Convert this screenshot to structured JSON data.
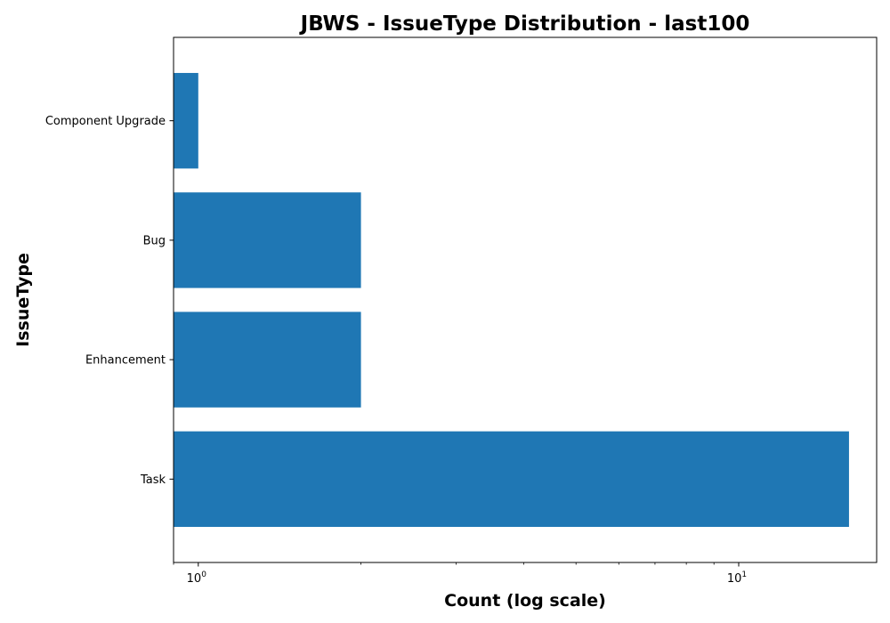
{
  "chart_data": {
    "type": "bar",
    "orientation": "horizontal",
    "title": "JBWS - IssueType Distribution - last100",
    "xlabel": "Count (log scale)",
    "ylabel": "IssueType",
    "xscale": "log",
    "xlim": [
      0.9,
      18
    ],
    "categories": [
      "Component Upgrade",
      "Bug",
      "Enhancement",
      "Task"
    ],
    "values": [
      1,
      2,
      2,
      16
    ],
    "x_ticks": [
      {
        "value": 1,
        "base": "10",
        "exponent": "0"
      },
      {
        "value": 10,
        "base": "10",
        "exponent": "1"
      }
    ],
    "bar_color": "#1f77b4",
    "grid": false,
    "legend": "none"
  }
}
